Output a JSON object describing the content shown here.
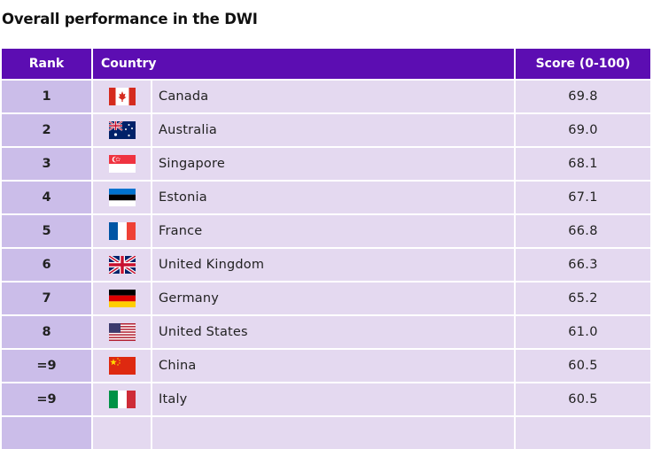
{
  "title": "Overall performance in the DWI",
  "headers": {
    "rank": "Rank",
    "country": "Country",
    "score": "Score (0-100)"
  },
  "rows": [
    {
      "rank": "1",
      "country": "Canada",
      "score": "69.8",
      "flag": "canada-flag-icon"
    },
    {
      "rank": "2",
      "country": "Australia",
      "score": "69.0",
      "flag": "australia-flag-icon"
    },
    {
      "rank": "3",
      "country": "Singapore",
      "score": "68.1",
      "flag": "singapore-flag-icon"
    },
    {
      "rank": "4",
      "country": "Estonia",
      "score": "67.1",
      "flag": "estonia-flag-icon"
    },
    {
      "rank": "5",
      "country": "France",
      "score": "66.8",
      "flag": "france-flag-icon"
    },
    {
      "rank": "6",
      "country": "United Kingdom",
      "score": "66.3",
      "flag": "united-kingdom-flag-icon"
    },
    {
      "rank": "7",
      "country": "Germany",
      "score": "65.2",
      "flag": "germany-flag-icon"
    },
    {
      "rank": "8",
      "country": "United States",
      "score": "61.0",
      "flag": "united-states-flag-icon"
    },
    {
      "rank": "=9",
      "country": "China",
      "score": "60.5",
      "flag": "china-flag-icon"
    },
    {
      "rank": "=9",
      "country": "Italy",
      "score": "60.5",
      "flag": "italy-flag-icon"
    }
  ],
  "colors": {
    "header_bg": "#5c0db2",
    "rank_cell_bg": "#cbbde9",
    "cell_bg": "#e4d9f0"
  }
}
